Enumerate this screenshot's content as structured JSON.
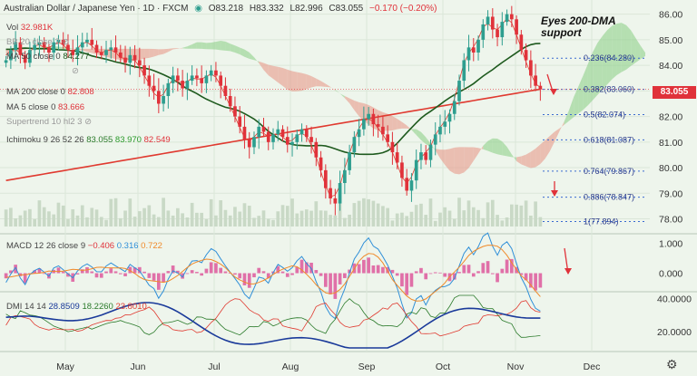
{
  "header": {
    "symbol": "Australian Dollar / Japanese Yen · 1D · FXCM",
    "o": "O83.218",
    "h": "H83.332",
    "l": "L82.996",
    "c": "C83.055",
    "chg": "−0.170 (−0.20%)"
  },
  "indicators": {
    "vol": {
      "label": "Vol",
      "value": "32.981K"
    },
    "bb": {
      "label": "BB 20 close 2"
    },
    "ma50": {
      "label": "MA 50 close 0",
      "value": "84.277"
    },
    "ma200": {
      "label": "MA 200 close 0",
      "value": "82.808"
    },
    "ma5": {
      "label": "MA 5 close 0",
      "value": "83.666"
    },
    "supertrend": {
      "label": "Supertrend 10 hl2 3"
    },
    "ichimoku": {
      "label": "Ichimoku 9 26 52 26",
      "v1": "83.055",
      "v2": "83.970",
      "v3": "82.549"
    },
    "macd": {
      "label": "MACD 12 26 close 9",
      "v1": "−0.406",
      "v2": "0.316",
      "v3": "0.722"
    },
    "dmi": {
      "label": "DMI 14 14",
      "v1": "28.8509",
      "v2": "18.2260",
      "v3": "23.8010"
    }
  },
  "annotation": {
    "line1": "Eyes 200-DMA",
    "line2": "support"
  },
  "last_price": "83.055",
  "colors": {
    "up": "#2e9e8f",
    "down": "#e0323a",
    "ma50": "#1e5a1e",
    "ma200": "#e03a30",
    "cloud_up": "#8fd08a",
    "cloud_down": "#e89a8a",
    "macd_line": "#2f8fd8",
    "macd_signal": "#f08a2a",
    "hist": "#e070a8",
    "dmi_adx": "#1a3a9a",
    "dmi_plus": "#2a7a2a",
    "dmi_minus": "#e03a30",
    "fib": "#3a6ad0"
  },
  "chart_data": [
    {
      "type": "candlestick",
      "title": "Australian Dollar / Japanese Yen · 1D · FXCM",
      "x_ticks": [
        "May",
        "Jun",
        "Jul",
        "Aug",
        "Sep",
        "Oct",
        "Nov",
        "Dec"
      ],
      "y_ticks": [
        78.0,
        79.0,
        80.0,
        81.0,
        82.0,
        83.0,
        84.0,
        85.0,
        86.0
      ],
      "ylim": [
        77.7,
        86.2
      ],
      "close_series": [
        84.2,
        84.6,
        84.9,
        84.4,
        84.1,
        84.6,
        84.8,
        84.9,
        84.7,
        84.5,
        84.9,
        85.0,
        84.8,
        84.6,
        84.4,
        84.7,
        84.9,
        85.0,
        84.8,
        84.5,
        84.4,
        84.6,
        84.7,
        84.5,
        84.3,
        84.1,
        84.4,
        84.2,
        84.0,
        83.6,
        83.2,
        83.0,
        82.5,
        82.8,
        83.3,
        83.6,
        83.4,
        83.1,
        83.4,
        83.6,
        83.5,
        83.3,
        83.6,
        83.8,
        83.6,
        83.2,
        82.8,
        82.4,
        82.0,
        81.6,
        81.1,
        80.8,
        81.2,
        81.6,
        81.4,
        81.0,
        81.3,
        81.5,
        81.2,
        80.9,
        81.0,
        81.3,
        81.5,
        81.2,
        81.0,
        80.4,
        79.9,
        79.2,
        78.8,
        78.6,
        79.4,
        79.9,
        80.6,
        81.2,
        81.5,
        81.9,
        82.1,
        81.7,
        81.6,
        81.3,
        81.0,
        80.6,
        80.2,
        79.6,
        79.1,
        79.5,
        80.3,
        80.6,
        80.3,
        80.9,
        81.3,
        81.6,
        81.8,
        82.1,
        82.6,
        83.4,
        84.2,
        84.7,
        84.5,
        85.0,
        85.6,
        85.9,
        85.4,
        85.1,
        85.7,
        86.0,
        85.8,
        85.2,
        84.6,
        84.2,
        83.6,
        83.2,
        83.06
      ],
      "annotations": [
        "Eyes 200-DMA support"
      ],
      "fib_levels": [
        {
          "label": "0.236(84.280)",
          "value": 84.28
        },
        {
          "label": "0.382(83.060)",
          "value": 83.06
        },
        {
          "label": "0.5(82.074)",
          "value": 82.074
        },
        {
          "label": "0.618(81.087)",
          "value": 81.087
        },
        {
          "label": "0.764(79.867)",
          "value": 79.867
        },
        {
          "label": "0.886(78.847)",
          "value": 78.847
        },
        {
          "label": "1(77.894)",
          "value": 77.894
        }
      ]
    },
    {
      "type": "line",
      "title": "MACD 12 26 close 9",
      "y_ticks": [
        0.0,
        1.0
      ],
      "ylim": [
        -0.5,
        1.2
      ]
    },
    {
      "type": "line",
      "title": "DMI 14 14",
      "y_ticks": [
        20.0,
        40.0
      ],
      "ylim": [
        10,
        42
      ]
    }
  ],
  "axis": {
    "months": [
      "May",
      "Jun",
      "Jul",
      "Aug",
      "Sep",
      "Oct",
      "Nov",
      "Dec"
    ]
  }
}
